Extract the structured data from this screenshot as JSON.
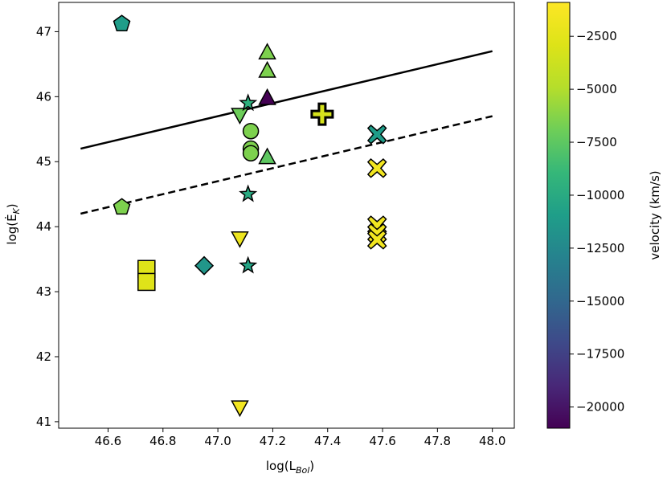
{
  "chart_data": {
    "type": "scatter",
    "title": "",
    "xlabel": "log(L",
    "xlabel_sub": "Bol",
    "xlabel_close": ")",
    "ylabel": "log(Ė",
    "ylabel_sub": "K",
    "ylabel_close": ")",
    "xlim": [
      46.42,
      48.08
    ],
    "ylim": [
      40.9,
      47.45
    ],
    "x_ticks": [
      46.6,
      46.8,
      47.0,
      47.2,
      47.4,
      47.6,
      47.8,
      48.0
    ],
    "x_tick_labels": [
      "46.6",
      "46.8",
      "47.0",
      "47.2",
      "47.4",
      "47.6",
      "47.8",
      "48.0"
    ],
    "y_ticks": [
      41,
      42,
      43,
      44,
      45,
      46,
      47
    ],
    "y_tick_labels": [
      "41",
      "42",
      "43",
      "44",
      "45",
      "46",
      "47"
    ],
    "grid": false,
    "lines": [
      {
        "style": "solid",
        "x": [
          46.5,
          48.0
        ],
        "y": [
          45.2,
          46.7
        ]
      },
      {
        "style": "dashed",
        "x": [
          46.5,
          48.0
        ],
        "y": [
          44.2,
          45.7
        ]
      }
    ],
    "colorbar": {
      "label": "velocity (km/s)",
      "min": -21000,
      "max": -900,
      "colormap": "viridis",
      "ticks": [
        -20000,
        -17500,
        -15000,
        -12500,
        -10000,
        -7500,
        -5000,
        -2500
      ],
      "tick_labels": [
        "−20000",
        "−17500",
        "−15000",
        "−12500",
        "−10000",
        "−7500",
        "−5000",
        "−2500"
      ]
    },
    "points": [
      {
        "marker": "pentagon",
        "x": 46.65,
        "y": 47.12,
        "v": -11000
      },
      {
        "marker": "pentagon",
        "x": 46.65,
        "y": 44.3,
        "v": -6500
      },
      {
        "marker": "square",
        "x": 46.74,
        "y": 43.35,
        "v": -2800
      },
      {
        "marker": "square",
        "x": 46.74,
        "y": 43.15,
        "v": -2800
      },
      {
        "marker": "diamond",
        "x": 46.95,
        "y": 43.4,
        "v": -11500
      },
      {
        "marker": "triangle-down",
        "x": 47.08,
        "y": 45.72,
        "v": -7000
      },
      {
        "marker": "triangle-down",
        "x": 47.08,
        "y": 43.82,
        "v": -1900
      },
      {
        "marker": "triangle-down",
        "x": 47.08,
        "y": 41.22,
        "v": -1500
      },
      {
        "marker": "star",
        "x": 47.11,
        "y": 45.9,
        "v": -9500
      },
      {
        "marker": "star",
        "x": 47.11,
        "y": 44.5,
        "v": -10000
      },
      {
        "marker": "star",
        "x": 47.11,
        "y": 43.4,
        "v": -10500
      },
      {
        "marker": "circle",
        "x": 47.12,
        "y": 45.47,
        "v": -6500
      },
      {
        "marker": "circle",
        "x": 47.12,
        "y": 45.2,
        "v": -6500
      },
      {
        "marker": "circle",
        "x": 47.12,
        "y": 45.13,
        "v": -6500
      },
      {
        "marker": "triangle-up",
        "x": 47.18,
        "y": 46.68,
        "v": -6500
      },
      {
        "marker": "triangle-up",
        "x": 47.18,
        "y": 46.4,
        "v": -6500
      },
      {
        "marker": "triangle-up",
        "x": 47.18,
        "y": 45.98,
        "v": -21000
      },
      {
        "marker": "triangle-up",
        "x": 47.18,
        "y": 45.07,
        "v": -7500
      },
      {
        "marker": "plus",
        "x": 47.38,
        "y": 45.73,
        "v": -3300
      },
      {
        "marker": "x",
        "x": 47.58,
        "y": 45.42,
        "v": -11000
      },
      {
        "marker": "x",
        "x": 47.58,
        "y": 44.9,
        "v": -1600
      },
      {
        "marker": "x",
        "x": 47.58,
        "y": 44.02,
        "v": -1600
      },
      {
        "marker": "x",
        "x": 47.58,
        "y": 43.9,
        "v": -1600
      },
      {
        "marker": "x",
        "x": 47.58,
        "y": 43.8,
        "v": -1600
      }
    ]
  }
}
